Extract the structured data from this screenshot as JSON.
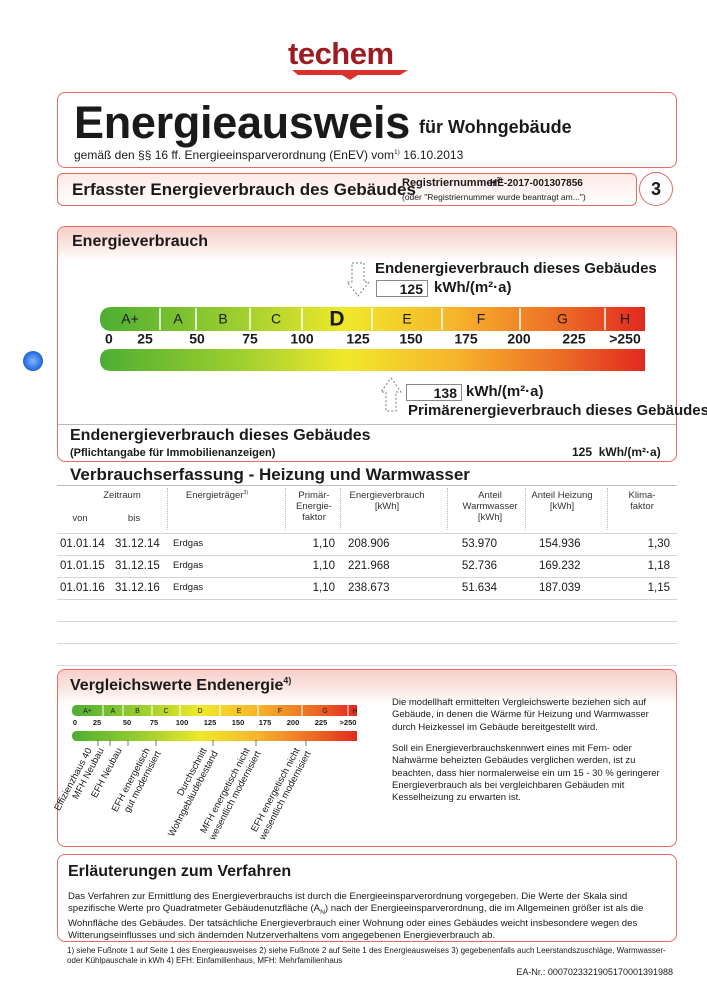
{
  "logo": "techem",
  "header": {
    "title": "Energieausweis",
    "title_suffix": "für Wohngebäude",
    "subtitle": "gemäß den §§ 16 ff. Energieeinsparverordnung (EnEV) vom",
    "subtitle_note": "1)",
    "subtitle_date": "16.10.2013"
  },
  "section_bar": {
    "title": "Erfasster Energieverbrauch des Gebäudes",
    "reg_label": "Registriernummer",
    "reg_note": "2)",
    "reg_number": "HE-2017-001307856",
    "reg_hint": "(oder \"Registriernummer wurde beantragt am...\")",
    "page": "3"
  },
  "consumption": {
    "title": "Energieverbrauch",
    "final_label": "Endenergieverbrauch dieses Gebäudes",
    "final_value": 125,
    "final_unit": "kWh/(m²·a)",
    "primary_value": 138,
    "primary_unit": "kWh/(m²·a)",
    "primary_label": "Primärenergieverbrauch dieses Gebäudes",
    "classes": [
      "A+",
      "A",
      "B",
      "C",
      "D",
      "E",
      "F",
      "G",
      "H"
    ],
    "ticks": [
      0,
      25,
      50,
      75,
      100,
      125,
      150,
      175,
      200,
      225,
      ">250"
    ]
  },
  "listing": {
    "title": "Endenergieverbrauch dieses Gebäudes",
    "note": "(Pflichtangabe für Immobilienanzeigen)",
    "value": 125,
    "unit": "kWh/(m²·a)"
  },
  "table": {
    "title": "Verbrauchserfassung - Heizung und Warmwasser",
    "headers": [
      {
        "lines": [
          "Zeitraum"
        ]
      },
      {
        "lines": [
          "Energieträger"
        ],
        "note": "3)"
      },
      {
        "lines": [
          "Primär-",
          "Energie-",
          "faktor"
        ]
      },
      {
        "lines": [
          "Energieverbrauch",
          "[kWh]"
        ]
      },
      {
        "lines": [
          "Anteil",
          "Warmwasser",
          "[kWh]"
        ]
      },
      {
        "lines": [
          "Anteil Heizung",
          "[kWh]"
        ]
      },
      {
        "lines": [
          "Klima-",
          "faktor"
        ]
      }
    ],
    "subheaders": [
      "von",
      "bis"
    ],
    "rows": [
      [
        "01.01.14",
        "31.12.14",
        "Erdgas",
        "1,10",
        "208.906",
        "53.970",
        "154.936",
        "1,30"
      ],
      [
        "01.01.15",
        "31.12.15",
        "Erdgas",
        "1,10",
        "221.968",
        "52.736",
        "169.232",
        "1,18"
      ],
      [
        "01.01.16",
        "31.12.16",
        "Erdgas",
        "1,10",
        "238.673",
        "51.634",
        "187.039",
        "1,15"
      ]
    ]
  },
  "comparison": {
    "title": "Vergleichswerte Endenergie",
    "title_note": "4)",
    "classes": [
      "A+",
      "A",
      "B",
      "C",
      "D",
      "E",
      "F",
      "G",
      "H"
    ],
    "ticks": [
      0,
      25,
      50,
      75,
      100,
      125,
      150,
      175,
      200,
      225,
      ">250"
    ],
    "labels": [
      [
        "Effizienzhaus 40"
      ],
      [
        "MFH Neubau"
      ],
      [
        "EFH Neubau"
      ],
      [
        "EFH energetisch",
        "gut modernisiert"
      ],
      [
        "Durchschnitt",
        "Wohngebäudebestand"
      ],
      [
        "MFH energetisch nicht",
        "wesentlich modernisiert"
      ],
      [
        "EFH energetisch nicht",
        "wesentlich modernisiert"
      ]
    ],
    "text": [
      "Die modellhaft ermittelten Vergleichswerte beziehen sich auf Gebäude, in denen die Wärme für Heizung und Warmwasser durch Heizkessel im Gebäude bereitgestellt wird.",
      "Soll ein Energieverbrauchskennwert eines mit Fern- oder Nahwärme beheizten Gebäudes verglichen werden, ist zu beachten, dass hier normalerweise ein um 15 - 30 % geringerer Energieverbrauch als bei vergleichbaren Gebäuden mit Kesselheizung zu erwarten ist."
    ]
  },
  "explanation": {
    "title": "Erläuterungen zum Verfahren",
    "text_before": "Das Verfahren zur Ermittlung des Energieverbrauchs ist durch die Energieeinsparverordnung vorgegeben. Die Werte der Skala sind spezifische Werte pro Quadratmeter Gebäudenutzfläche (A",
    "text_sub": "N",
    "text_after": ") nach der Energieeinsparverordnung, die im Allgemeinen größer ist als die Wohnfläche des Gebäudes. Der tatsächliche Energieverbrauch einer Wohnung oder eines Gebäudes weicht insbesondere wegen des Witterungseinflusses und sich ändernden Nutzerverhaltens vom angegebenen Energieverbrauch ab."
  },
  "footnotes": "1) siehe Fußnote 1 auf Seite 1 des Energieausweises   2) siehe Fußnote 2 auf Seite 1 des Energieausweises   3) gegebenenfalls auch Leerstandszuschläge, Warmwasser- oder Kühlpauschale in kWh   4) EFH: Einfamilienhaus, MFH: Mehrfamilienhaus",
  "ea_number": "EA-Nr.: 0007023321905170001391988"
}
